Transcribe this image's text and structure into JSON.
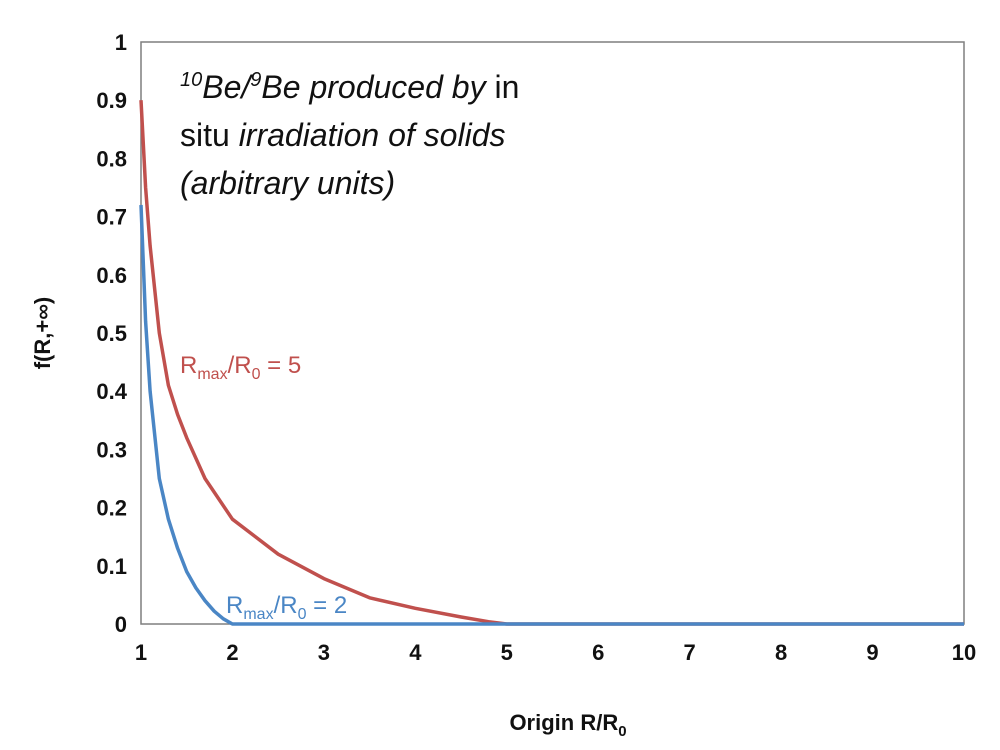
{
  "chart_data": {
    "type": "line",
    "xlabel": "Origin R/R",
    "xlabel_sub": "0",
    "ylabel": "f(R,+∞)",
    "xlim": [
      1,
      10
    ],
    "ylim": [
      0,
      1
    ],
    "x_ticks": [
      "1",
      "2",
      "3",
      "4",
      "5",
      "6",
      "7",
      "8",
      "9",
      "10"
    ],
    "y_ticks": [
      "0",
      "0.1",
      "0.2",
      "0.3",
      "0.4",
      "0.5",
      "0.6",
      "0.7",
      "0.8",
      "0.9",
      "1"
    ],
    "annotation": {
      "line1_sup1": "10",
      "line1_a": "Be/",
      "line1_sup2": "9",
      "line1_b": "Be produced by",
      "line1_c": " in",
      "line2_a": "situ ",
      "line2_b": "irradiation of solids",
      "line3": "(arbitrary units)"
    },
    "series": [
      {
        "label_main": "R",
        "label_sub1": "max",
        "label_mid": "/R",
        "label_sub2": "0",
        "label_tail": " = 5",
        "color": "#c0504d",
        "x": [
          1.0,
          1.05,
          1.1,
          1.2,
          1.3,
          1.4,
          1.5,
          1.7,
          2.0,
          2.5,
          3.0,
          3.5,
          4.0,
          4.5,
          4.8,
          5.0,
          6.0,
          7.0,
          8.0,
          9.0,
          10.0
        ],
        "y": [
          0.9,
          0.75,
          0.65,
          0.5,
          0.41,
          0.36,
          0.32,
          0.25,
          0.18,
          0.12,
          0.078,
          0.045,
          0.027,
          0.012,
          0.004,
          0.0,
          0.0,
          0.0,
          0.0,
          0.0,
          0.0
        ]
      },
      {
        "label_main": "R",
        "label_sub1": "max",
        "label_mid": "/R",
        "label_sub2": "0",
        "label_tail": " = 2",
        "color": "#4a86c5",
        "x": [
          1.0,
          1.05,
          1.1,
          1.2,
          1.3,
          1.4,
          1.5,
          1.6,
          1.7,
          1.8,
          1.9,
          2.0,
          3.0,
          4.0,
          5.0,
          6.0,
          7.0,
          8.0,
          9.0,
          10.0
        ],
        "y": [
          0.72,
          0.52,
          0.4,
          0.25,
          0.18,
          0.13,
          0.09,
          0.062,
          0.04,
          0.022,
          0.009,
          0.0,
          0.0,
          0.0,
          0.0,
          0.0,
          0.0,
          0.0,
          0.0,
          0.0
        ]
      }
    ]
  }
}
